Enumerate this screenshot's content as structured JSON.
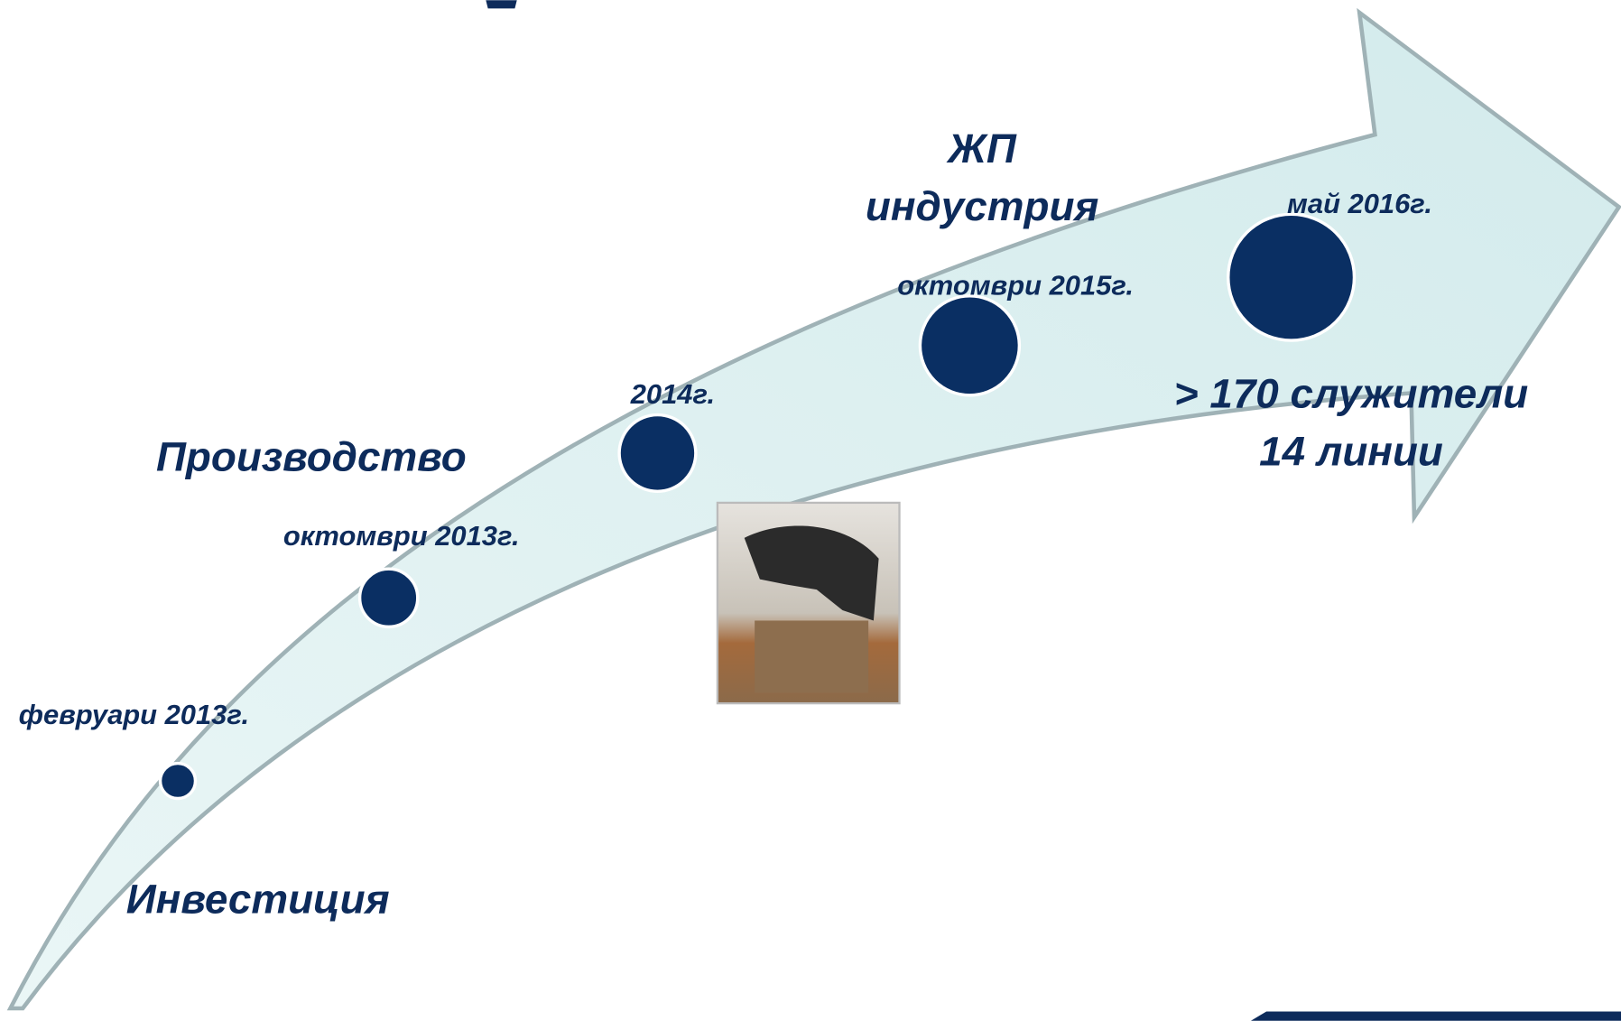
{
  "milestones": [
    {
      "date": "февруари 2013г."
    },
    {
      "date": "октомври 2013г."
    },
    {
      "date": "2014г."
    },
    {
      "date": "октомври 2015г."
    },
    {
      "date": "май 2016г."
    }
  ],
  "phases": [
    {
      "label": "Инвестиция"
    },
    {
      "label": "Производство"
    },
    {
      "label": [
        "ЖП",
        "индустрия"
      ]
    }
  ],
  "summary": [
    "> 170 служители",
    "14 линии"
  ]
}
